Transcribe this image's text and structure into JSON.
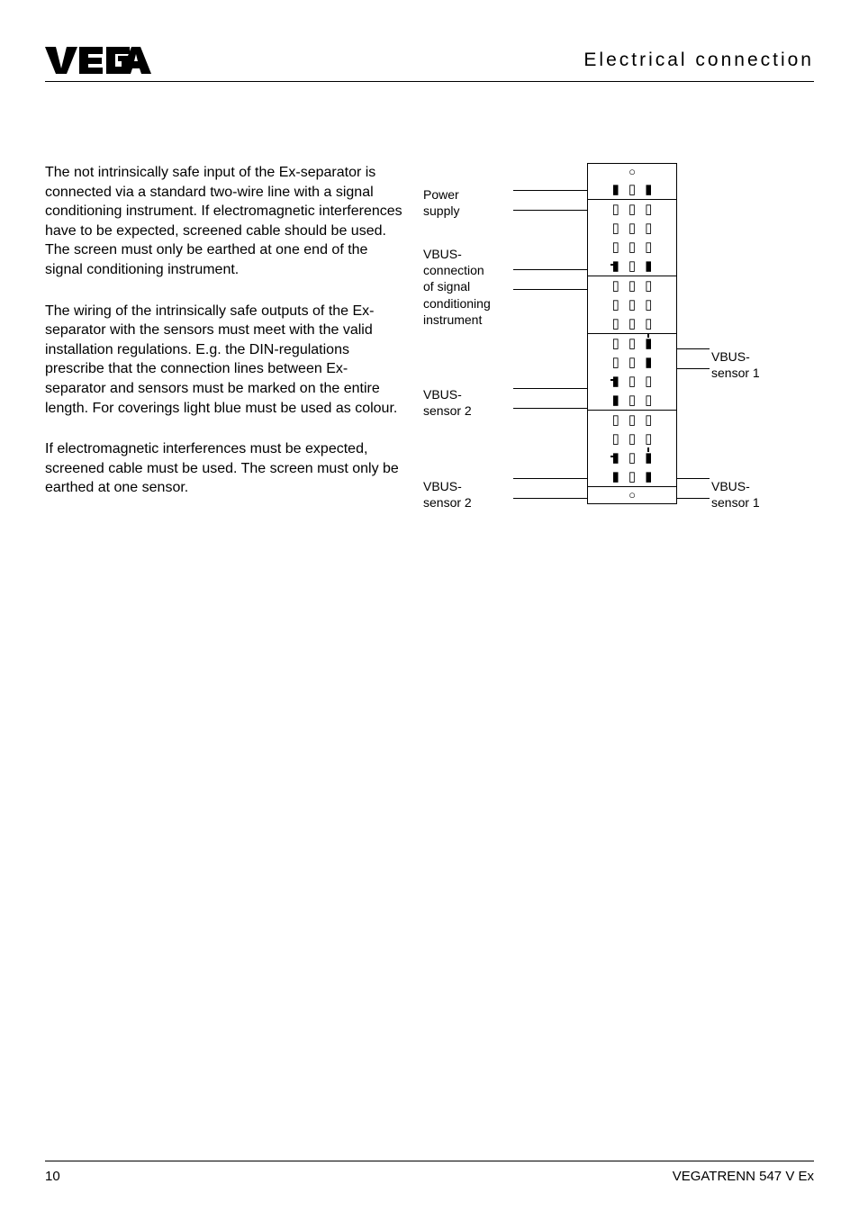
{
  "header": {
    "section_title": "Electrical  connection"
  },
  "body": {
    "p1": "The not intrinsically safe input of the Ex-separator is connected via a standard two-wire line with a signal conditioning instrument. If electromagnetic interferences have to be expected, screened cable should be used. The screen must only be earthed at one end of the signal conditioning instrument.",
    "p2": "The wiring of the intrinsically safe outputs of the Ex-separator with the sensors must meet with the valid installation regulations. E.g. the DIN-regulations prescribe that the connection lines between Ex-separator and sensors must be marked on the entire length. For coverings light blue must be used as colour.",
    "p3": "If electromagnetic interferences must be expected, screened cable must be used. The screen must only be earthed at one sensor."
  },
  "diagram": {
    "labels": {
      "power_supply": "Power\nsupply",
      "vbus_conn": "VBUS-\nconnection\nof signal\nconditioning\ninstrument",
      "vbus_s2_a": "VBUS-\nsensor 2",
      "vbus_s2_b": "VBUS-\nsensor 2",
      "vbus_s1_a": "VBUS-\nsensor 1",
      "vbus_s1_b": "VBUS-\nsensor 1"
    },
    "rows": [
      {
        "sep": false,
        "hole": true
      },
      {
        "sep": false,
        "cells": [
          "filled",
          "open",
          "filled"
        ]
      },
      {
        "sep": true,
        "cells": [
          "open",
          "open",
          "open"
        ]
      },
      {
        "sep": false,
        "cells": [
          "open",
          "open",
          "open"
        ]
      },
      {
        "sep": false,
        "cells": [
          "open",
          "open",
          "open"
        ]
      },
      {
        "sep": false,
        "cells": [
          "filled-lt",
          "open",
          "filled"
        ]
      },
      {
        "sep": true,
        "cells": [
          "open",
          "open",
          "open"
        ]
      },
      {
        "sep": false,
        "cells": [
          "open",
          "open",
          "open"
        ]
      },
      {
        "sep": false,
        "cells": [
          "open",
          "open",
          "open"
        ]
      },
      {
        "sep": true,
        "cells": [
          "open",
          "open",
          "filled-t"
        ]
      },
      {
        "sep": false,
        "cells": [
          "open",
          "open",
          "filled"
        ]
      },
      {
        "sep": false,
        "cells": [
          "filled-lt",
          "open",
          "open"
        ]
      },
      {
        "sep": false,
        "cells": [
          "filled",
          "open",
          "open"
        ]
      },
      {
        "sep": true,
        "cells": [
          "open",
          "open",
          "open"
        ]
      },
      {
        "sep": false,
        "cells": [
          "open",
          "open",
          "open"
        ]
      },
      {
        "sep": false,
        "cells": [
          "filled-lt",
          "open",
          "filled-t"
        ]
      },
      {
        "sep": false,
        "cells": [
          "filled",
          "open",
          "filled"
        ]
      },
      {
        "sep": true,
        "hole": true
      }
    ]
  },
  "footer": {
    "page": "10",
    "doc": "VEGATRENN 547 V Ex"
  }
}
